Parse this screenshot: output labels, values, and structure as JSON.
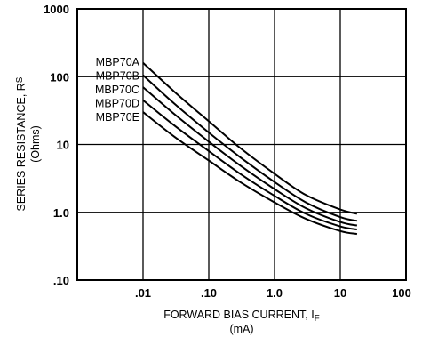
{
  "chart_data": {
    "type": "line",
    "title": "",
    "xlabel": "FORWARD BIAS CURRENT, I",
    "xlabel_sub": "F",
    "xlabel_unit": "(mA)",
    "ylabel": "SERIES RESISTANCE, R",
    "ylabel_sub": "S",
    "ylabel_unit": "(Ohms)",
    "x_scale": "log",
    "y_scale": "log",
    "xlim": [
      0.001,
      100
    ],
    "ylim": [
      0.1,
      1000
    ],
    "x_ticks": [
      0.01,
      0.1,
      1,
      10,
      100
    ],
    "x_tick_labels": [
      ".01",
      ".10",
      "1.0",
      "10",
      "100"
    ],
    "y_ticks": [
      0.1,
      1,
      10,
      100,
      1000
    ],
    "y_tick_labels": [
      ".10",
      "1.0",
      "10",
      "100",
      "1000"
    ],
    "grid": true,
    "legend": "labels beside curves at left",
    "series": [
      {
        "name": "MBP70A",
        "x": [
          0.01,
          0.03,
          0.1,
          0.3,
          1,
          3,
          10,
          18
        ],
        "y": [
          160,
          60,
          22,
          8.9,
          3.7,
          1.8,
          1.1,
          0.95
        ]
      },
      {
        "name": "MBP70B",
        "x": [
          0.01,
          0.03,
          0.1,
          0.3,
          1,
          3,
          10,
          18
        ],
        "y": [
          105,
          40,
          15,
          6.5,
          2.8,
          1.4,
          0.85,
          0.75
        ]
      },
      {
        "name": "MBP70C",
        "x": [
          0.01,
          0.03,
          0.1,
          0.3,
          1,
          3,
          10,
          18
        ],
        "y": [
          70,
          28,
          11,
          4.9,
          2.2,
          1.15,
          0.72,
          0.64
        ]
      },
      {
        "name": "MBP70D",
        "x": [
          0.01,
          0.03,
          0.1,
          0.3,
          1,
          3,
          10,
          18
        ],
        "y": [
          45,
          19,
          8,
          3.7,
          1.75,
          0.95,
          0.62,
          0.56
        ]
      },
      {
        "name": "MBP70E",
        "x": [
          0.01,
          0.03,
          0.1,
          0.3,
          1,
          3,
          10,
          18
        ],
        "y": [
          30,
          13,
          5.8,
          2.8,
          1.4,
          0.8,
          0.53,
          0.48
        ]
      }
    ],
    "colors": {
      "line": "#000000",
      "grid": "#000000",
      "background": "#ffffff"
    }
  }
}
